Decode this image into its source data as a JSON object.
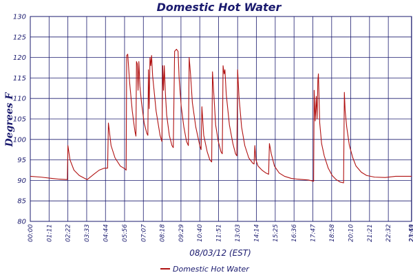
{
  "colors": {
    "axis": "#1a1a6e",
    "grid": "#1a1a6e",
    "series": "#b01010",
    "text": "#1a1a6e"
  },
  "chart_data": {
    "type": "line",
    "title": "Domestic Hot Water",
    "xlabel": "08/03/12 (EST)",
    "ylabel": "Degrees F",
    "ylim": [
      80,
      130
    ],
    "yticks": [
      80,
      85,
      90,
      95,
      100,
      105,
      110,
      115,
      120,
      125,
      130
    ],
    "xlim": [
      0,
      1440
    ],
    "xticks": [
      {
        "t": 0,
        "label": "00:00"
      },
      {
        "t": 71,
        "label": "01:11"
      },
      {
        "t": 142,
        "label": "02:22"
      },
      {
        "t": 213,
        "label": "03:33"
      },
      {
        "t": 284,
        "label": "04:44"
      },
      {
        "t": 356,
        "label": "05:56"
      },
      {
        "t": 427,
        "label": "07:07"
      },
      {
        "t": 498,
        "label": "08:18"
      },
      {
        "t": 569,
        "label": "09:29"
      },
      {
        "t": 640,
        "label": "10:40"
      },
      {
        "t": 711,
        "label": "11:51"
      },
      {
        "t": 783,
        "label": "13:03"
      },
      {
        "t": 854,
        "label": "14:14"
      },
      {
        "t": 925,
        "label": "15:25"
      },
      {
        "t": 996,
        "label": "16:36"
      },
      {
        "t": 1067,
        "label": "17:47"
      },
      {
        "t": 1138,
        "label": "18:58"
      },
      {
        "t": 1210,
        "label": "20:10"
      },
      {
        "t": 1281,
        "label": "21:21"
      },
      {
        "t": 1352,
        "label": "22:32"
      },
      {
        "t": 1439,
        "label": "23:43"
      },
      {
        "t": 1440,
        "label": "23:59"
      }
    ],
    "grid": true,
    "legend": {
      "position": "bottom-center",
      "entries": [
        "Domestic Hot Water"
      ]
    },
    "series": [
      {
        "name": "Domestic Hot Water",
        "points": [
          [
            0,
            91.0
          ],
          [
            40,
            90.8
          ],
          [
            80,
            90.5
          ],
          [
            110,
            90.3
          ],
          [
            140,
            90.2
          ],
          [
            142,
            98.5
          ],
          [
            150,
            95.0
          ],
          [
            165,
            92.5
          ],
          [
            185,
            91.2
          ],
          [
            205,
            90.5
          ],
          [
            215,
            90.2
          ],
          [
            240,
            91.5
          ],
          [
            260,
            92.5
          ],
          [
            280,
            93.0
          ],
          [
            292,
            93.0
          ],
          [
            295,
            104.0
          ],
          [
            305,
            98.5
          ],
          [
            320,
            95.5
          ],
          [
            340,
            93.5
          ],
          [
            358,
            92.8
          ],
          [
            362,
            92.5
          ],
          [
            364,
            120.5
          ],
          [
            368,
            120.8
          ],
          [
            375,
            114.0
          ],
          [
            385,
            107.0
          ],
          [
            395,
            102.0
          ],
          [
            399,
            100.8
          ],
          [
            401,
            119.0
          ],
          [
            404,
            118.5
          ],
          [
            407,
            112.0
          ],
          [
            410,
            119.0
          ],
          [
            414,
            113.0
          ],
          [
            420,
            109.0
          ],
          [
            430,
            104.0
          ],
          [
            440,
            101.5
          ],
          [
            444,
            101.0
          ],
          [
            446,
            117.0
          ],
          [
            449,
            107.5
          ],
          [
            452,
            120.0
          ],
          [
            455,
            118.0
          ],
          [
            458,
            120.5
          ],
          [
            462,
            115.5
          ],
          [
            475,
            107.0
          ],
          [
            490,
            101.0
          ],
          [
            497,
            99.5
          ],
          [
            500,
            118.0
          ],
          [
            503,
            112.0
          ],
          [
            506,
            118.0
          ],
          [
            510,
            111.5
          ],
          [
            515,
            106.0
          ],
          [
            525,
            101.0
          ],
          [
            535,
            98.5
          ],
          [
            540,
            98.0
          ],
          [
            545,
            121.5
          ],
          [
            552,
            122.0
          ],
          [
            558,
            121.5
          ],
          [
            562,
            115.0
          ],
          [
            570,
            108.0
          ],
          [
            580,
            103.0
          ],
          [
            590,
            99.5
          ],
          [
            597,
            98.5
          ],
          [
            600,
            120.0
          ],
          [
            605,
            116.0
          ],
          [
            612,
            109.0
          ],
          [
            625,
            103.0
          ],
          [
            640,
            98.5
          ],
          [
            645,
            97.5
          ],
          [
            648,
            108.0
          ],
          [
            655,
            101.0
          ],
          [
            668,
            97.0
          ],
          [
            678,
            95.0
          ],
          [
            685,
            94.5
          ],
          [
            688,
            116.5
          ],
          [
            694,
            110.0
          ],
          [
            700,
            103.5
          ],
          [
            710,
            99.5
          ],
          [
            720,
            97.0
          ],
          [
            725,
            96.5
          ],
          [
            728,
            118.0
          ],
          [
            732,
            116.0
          ],
          [
            735,
            117.0
          ],
          [
            740,
            111.0
          ],
          [
            752,
            103.5
          ],
          [
            765,
            99.0
          ],
          [
            775,
            96.5
          ],
          [
            780,
            96.0
          ],
          [
            783,
            117.0
          ],
          [
            788,
            110.5
          ],
          [
            798,
            103.0
          ],
          [
            810,
            98.5
          ],
          [
            825,
            95.5
          ],
          [
            840,
            94.2
          ],
          [
            845,
            94.0
          ],
          [
            848,
            98.5
          ],
          [
            852,
            95.0
          ],
          [
            860,
            93.5
          ],
          [
            875,
            92.5
          ],
          [
            890,
            91.8
          ],
          [
            900,
            91.5
          ],
          [
            903,
            99.0
          ],
          [
            910,
            96.5
          ],
          [
            922,
            93.5
          ],
          [
            940,
            91.8
          ],
          [
            960,
            91.0
          ],
          [
            985,
            90.5
          ],
          [
            1010,
            90.3
          ],
          [
            1050,
            90.1
          ],
          [
            1070,
            89.8
          ],
          [
            1072,
            112.0
          ],
          [
            1076,
            104.5
          ],
          [
            1080,
            110.5
          ],
          [
            1083,
            105.0
          ],
          [
            1086,
            114.5
          ],
          [
            1088,
            116.0
          ],
          [
            1093,
            104.0
          ],
          [
            1100,
            99.0
          ],
          [
            1110,
            96.0
          ],
          [
            1125,
            93.0
          ],
          [
            1140,
            91.2
          ],
          [
            1155,
            90.2
          ],
          [
            1170,
            89.6
          ],
          [
            1183,
            89.4
          ],
          [
            1186,
            111.5
          ],
          [
            1189,
            107.0
          ],
          [
            1195,
            103.0
          ],
          [
            1205,
            98.5
          ],
          [
            1218,
            95.5
          ],
          [
            1230,
            93.5
          ],
          [
            1250,
            92.0
          ],
          [
            1270,
            91.2
          ],
          [
            1300,
            90.8
          ],
          [
            1340,
            90.7
          ],
          [
            1380,
            91.0
          ],
          [
            1420,
            91.0
          ],
          [
            1440,
            91.0
          ]
        ]
      }
    ]
  }
}
